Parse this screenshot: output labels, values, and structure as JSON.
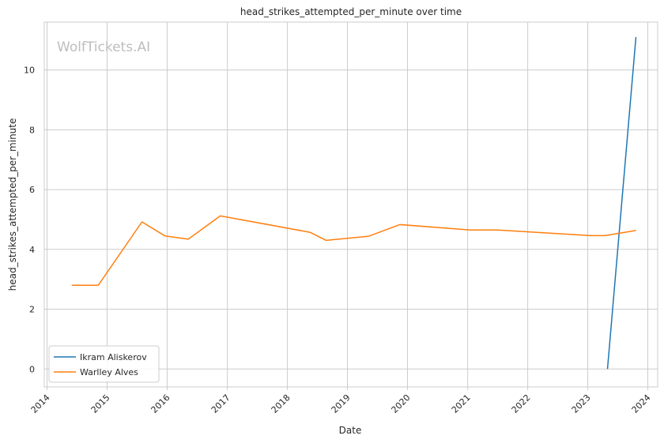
{
  "chart_data": {
    "type": "line",
    "title": "head_strikes_attempted_per_minute over time",
    "xlabel": "Date",
    "ylabel": "head_strikes_attempted_per_minute",
    "watermark": "WolfTickets.AI",
    "x_ticks": [
      "2014",
      "2015",
      "2016",
      "2017",
      "2018",
      "2019",
      "2020",
      "2021",
      "2022",
      "2023",
      "2024"
    ],
    "y_ticks": [
      "0",
      "2",
      "4",
      "6",
      "8",
      "10"
    ],
    "xlim": [
      "2013-12-15",
      "2024-03-01"
    ],
    "ylim": [
      -0.6,
      11.6
    ],
    "grid": true,
    "legend_position": "bottom-left",
    "series": [
      {
        "name": "Ikram Aliskerov",
        "color": "#1f77b4",
        "points": [
          {
            "x": "2023-05-01",
            "y": 0.0
          },
          {
            "x": "2023-10-21",
            "y": 11.1
          }
        ]
      },
      {
        "name": "Warlley Alves",
        "color": "#ff7f0e",
        "points": [
          {
            "x": "2014-05-31",
            "y": 2.8
          },
          {
            "x": "2014-11-08",
            "y": 2.8
          },
          {
            "x": "2015-08-01",
            "y": 4.92
          },
          {
            "x": "2015-12-19",
            "y": 4.45
          },
          {
            "x": "2016-05-08",
            "y": 4.34
          },
          {
            "x": "2016-11-19",
            "y": 5.12
          },
          {
            "x": "2018-05-19",
            "y": 4.57
          },
          {
            "x": "2018-08-25",
            "y": 4.3
          },
          {
            "x": "2019-05-11",
            "y": 4.44
          },
          {
            "x": "2019-11-16",
            "y": 4.83
          },
          {
            "x": "2021-01-16",
            "y": 4.65
          },
          {
            "x": "2021-06-26",
            "y": 4.65
          },
          {
            "x": "2023-01-21",
            "y": 4.46
          },
          {
            "x": "2023-04-15",
            "y": 4.46
          },
          {
            "x": "2023-10-21",
            "y": 4.63
          }
        ]
      }
    ]
  }
}
